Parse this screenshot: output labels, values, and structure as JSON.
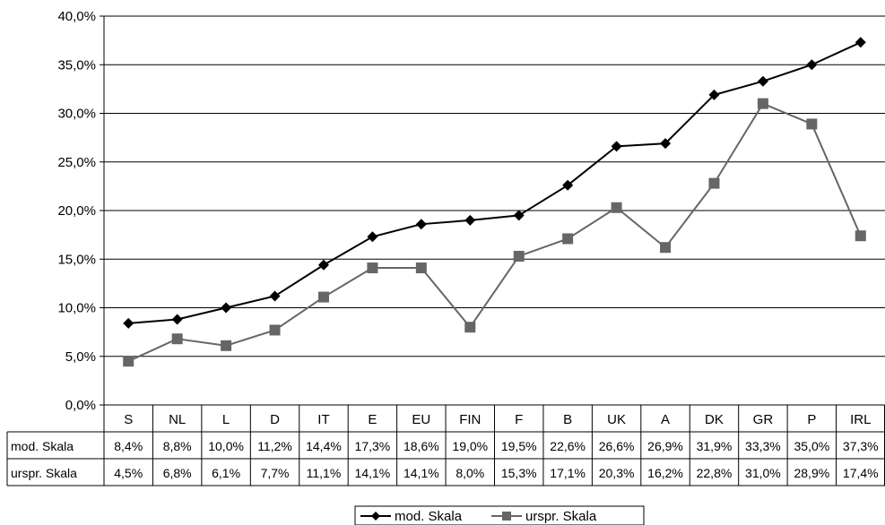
{
  "chart_data": {
    "type": "line",
    "categories": [
      "S",
      "NL",
      "L",
      "D",
      "IT",
      "E",
      "EU",
      "FIN",
      "F",
      "B",
      "UK",
      "A",
      "DK",
      "GR",
      "P",
      "IRL"
    ],
    "series": [
      {
        "name": "mod. Skala",
        "color": "#000000",
        "marker": "diamond",
        "values": [
          8.4,
          8.8,
          10.0,
          11.2,
          14.4,
          17.3,
          18.6,
          19.0,
          19.5,
          22.6,
          26.6,
          26.9,
          31.9,
          33.3,
          35.0,
          37.3
        ],
        "labels": [
          "8,4%",
          "8,8%",
          "10,0%",
          "11,2%",
          "14,4%",
          "17,3%",
          "18,6%",
          "19,0%",
          "19,5%",
          "22,6%",
          "26,6%",
          "26,9%",
          "31,9%",
          "33,3%",
          "35,0%",
          "37,3%"
        ]
      },
      {
        "name": "urspr. Skala",
        "color": "#666666",
        "marker": "square",
        "values": [
          4.5,
          6.8,
          6.1,
          7.7,
          11.1,
          14.1,
          14.1,
          8.0,
          15.3,
          17.1,
          20.3,
          16.2,
          22.8,
          31.0,
          28.9,
          17.4
        ],
        "labels": [
          "4,5%",
          "6,8%",
          "6,1%",
          "7,7%",
          "11,1%",
          "14,1%",
          "14,1%",
          "8,0%",
          "15,3%",
          "17,1%",
          "20,3%",
          "16,2%",
          "22,8%",
          "31,0%",
          "28,9%",
          "17,4%"
        ]
      }
    ],
    "ylim": [
      0,
      40
    ],
    "yticks": [
      {
        "value": 0,
        "label": "0,0%"
      },
      {
        "value": 5,
        "label": "5,0%"
      },
      {
        "value": 10,
        "label": "10,0%"
      },
      {
        "value": 15,
        "label": "15,0%"
      },
      {
        "value": 20,
        "label": "20,0%"
      },
      {
        "value": 25,
        "label": "25,0%"
      },
      {
        "value": 30,
        "label": "30,0%"
      },
      {
        "value": 35,
        "label": "35,0%"
      },
      {
        "value": 40,
        "label": "40,0%"
      }
    ],
    "grid": true,
    "data_table": true,
    "legend_position": "bottom"
  }
}
